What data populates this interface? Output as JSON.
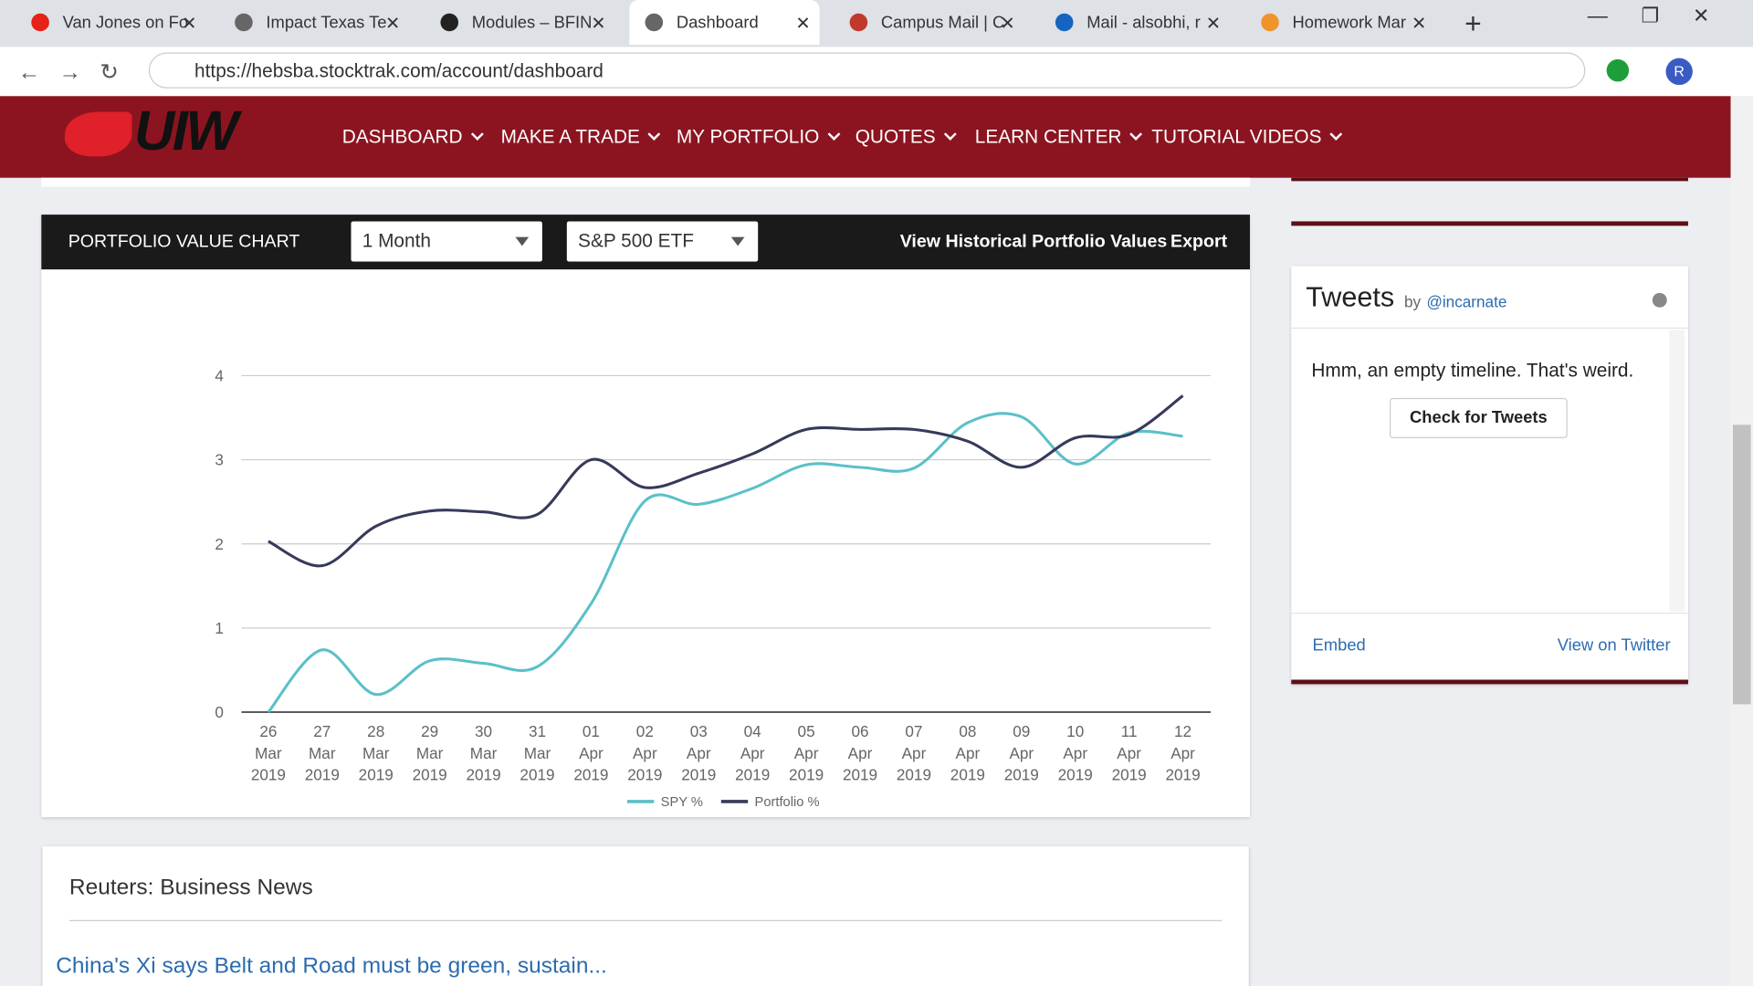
{
  "browser": {
    "tabs": [
      "Van Jones on Fo",
      "Impact Texas Te",
      "Modules – BFIN",
      "Dashboard",
      "Campus Mail | C",
      "Mail - alsobhi, r",
      "Homework Mar"
    ],
    "url": "https://hebsba.stocktrak.com/account/dashboard",
    "profile": "R"
  },
  "nav": {
    "logo": "UIW",
    "items": [
      "DASHBOARD",
      "MAKE A TRADE",
      "MY PORTFOLIO",
      "QUOTES",
      "LEARN CENTER",
      "TUTORIAL VIDEOS"
    ]
  },
  "panel": {
    "title": "PORTFOLIO VALUE CHART",
    "period": "1 Month",
    "benchmark": "S&P 500 ETF",
    "links": [
      "View Historical Portfolio Values",
      "Export"
    ]
  },
  "chart_data": {
    "type": "line",
    "categories": [
      "26 Mar 2019",
      "27 Mar 2019",
      "28 Mar 2019",
      "29 Mar 2019",
      "30 Mar 2019",
      "31 Mar 2019",
      "01 Apr 2019",
      "02 Apr 2019",
      "03 Apr 2019",
      "04 Apr 2019",
      "05 Apr 2019",
      "06 Apr 2019",
      "07 Apr 2019",
      "08 Apr 2019",
      "09 Apr 2019",
      "10 Apr 2019",
      "11 Apr 2019",
      "12 Apr 2019"
    ],
    "series": [
      {
        "name": "SPY %",
        "color": "#5bc0c8",
        "values": [
          0,
          0.74,
          0.21,
          0.61,
          0.58,
          0.54,
          1.29,
          2.51,
          2.47,
          2.66,
          2.94,
          2.91,
          2.9,
          3.44,
          3.51,
          2.95,
          3.32,
          3.28
        ]
      },
      {
        "name": "Portfolio %",
        "color": "#363a5a",
        "values": [
          2.03,
          1.74,
          2.21,
          2.39,
          2.38,
          2.35,
          3.0,
          2.67,
          2.84,
          3.07,
          3.36,
          3.36,
          3.36,
          3.22,
          2.91,
          3.26,
          3.3,
          3.76
        ]
      }
    ],
    "ylim": [
      0,
      4
    ],
    "yticks": [
      0,
      1,
      2,
      3,
      4
    ],
    "grid": true
  },
  "tweets": {
    "title": "Tweets",
    "by": "by",
    "handle": "@incarnate",
    "message": "Hmm, an empty timeline. That's weird.",
    "button": "Check for Tweets",
    "embed": "Embed",
    "view": "View on Twitter"
  },
  "news": {
    "title": "Reuters: Business News",
    "headline": "China's Xi says Belt and Road must be green, sustain..."
  }
}
